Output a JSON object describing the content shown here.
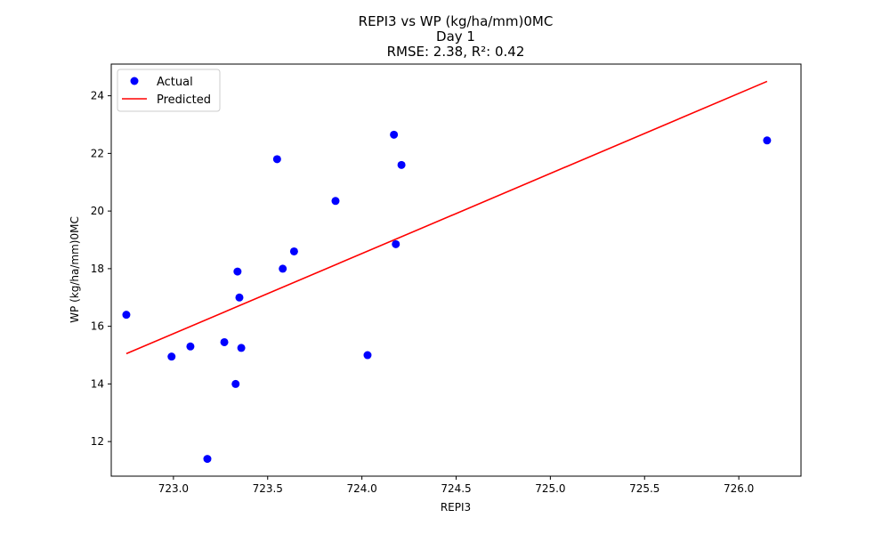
{
  "chart_data": {
    "type": "scatter",
    "title_lines": [
      "REPI3 vs WP (kg/ha/mm)0MC",
      "Day 1",
      "RMSE: 2.38, R²: 0.42"
    ],
    "xlabel": "REPI3",
    "ylabel": "WP (kg/ha/mm)0MC",
    "xlim": [
      722.67,
      726.33
    ],
    "ylim": [
      10.8,
      25.1
    ],
    "x_ticks": [
      723.0,
      723.5,
      724.0,
      724.5,
      725.0,
      725.5,
      726.0
    ],
    "x_tick_labels": [
      "723.0",
      "723.5",
      "724.0",
      "724.5",
      "725.0",
      "725.5",
      "726.0"
    ],
    "y_ticks": [
      12,
      14,
      16,
      18,
      20,
      22,
      24
    ],
    "y_tick_labels": [
      "12",
      "14",
      "16",
      "18",
      "20",
      "22",
      "24"
    ],
    "grid": false,
    "legend": {
      "placement": "top-left",
      "entries": [
        "Actual",
        "Predicted"
      ]
    },
    "series": [
      {
        "name": "Actual",
        "kind": "scatter",
        "color": "#0000ff",
        "points": [
          {
            "x": 722.75,
            "y": 16.4
          },
          {
            "x": 722.99,
            "y": 14.95
          },
          {
            "x": 723.09,
            "y": 15.3
          },
          {
            "x": 723.18,
            "y": 11.4
          },
          {
            "x": 723.27,
            "y": 15.45
          },
          {
            "x": 723.33,
            "y": 14.0
          },
          {
            "x": 723.34,
            "y": 17.9
          },
          {
            "x": 723.35,
            "y": 17.0
          },
          {
            "x": 723.36,
            "y": 15.25
          },
          {
            "x": 723.55,
            "y": 21.8
          },
          {
            "x": 723.58,
            "y": 18.0
          },
          {
            "x": 723.64,
            "y": 18.6
          },
          {
            "x": 723.86,
            "y": 20.35
          },
          {
            "x": 724.03,
            "y": 15.0
          },
          {
            "x": 724.17,
            "y": 22.65
          },
          {
            "x": 724.18,
            "y": 18.85
          },
          {
            "x": 724.21,
            "y": 21.6
          },
          {
            "x": 726.15,
            "y": 22.45
          }
        ]
      },
      {
        "name": "Predicted",
        "kind": "line",
        "color": "#ff0000",
        "points": [
          {
            "x": 722.75,
            "y": 15.05
          },
          {
            "x": 726.15,
            "y": 24.5
          }
        ]
      }
    ]
  }
}
